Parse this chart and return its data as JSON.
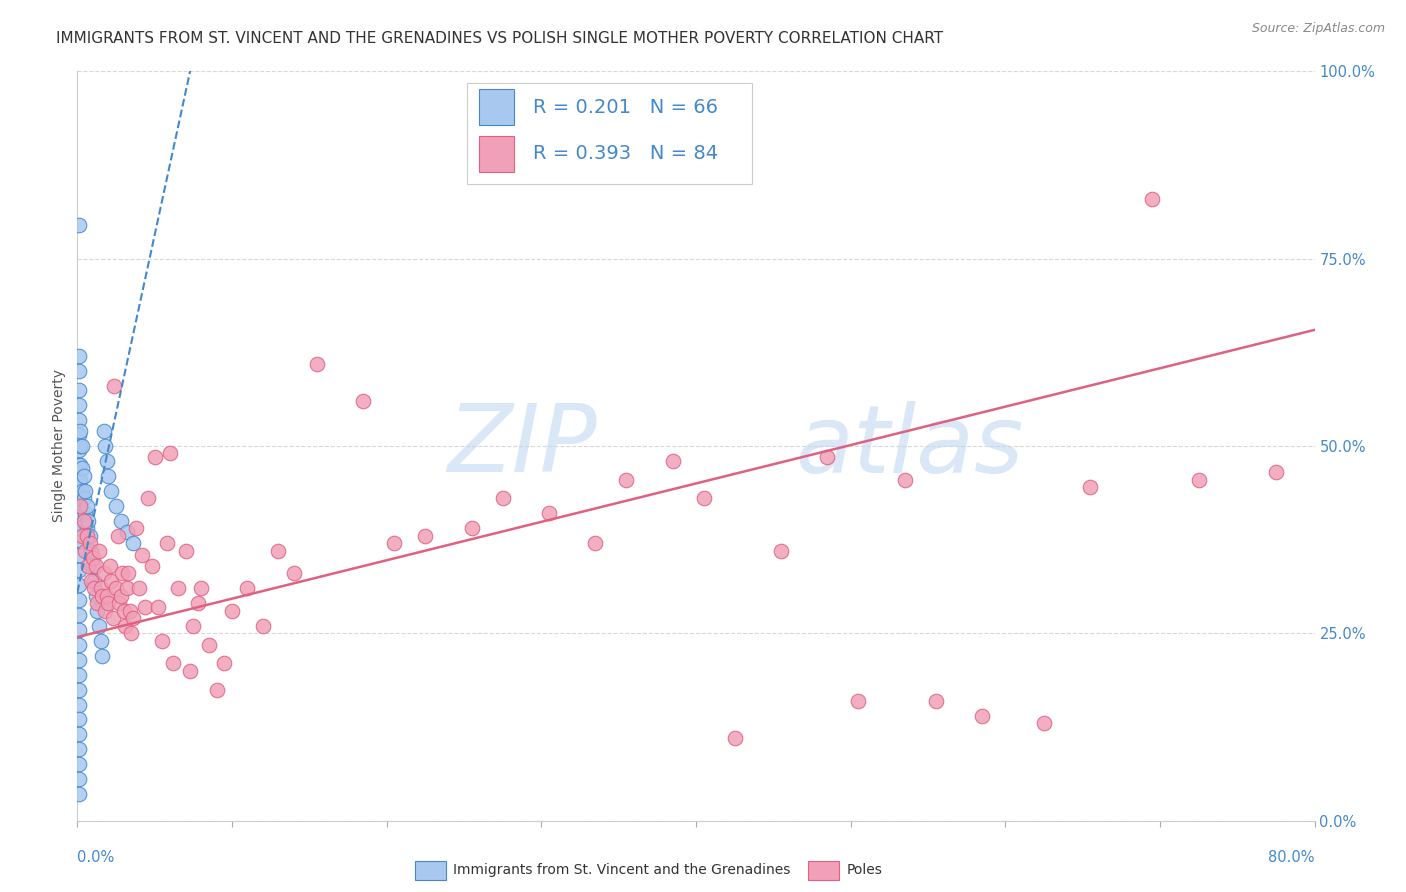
{
  "title": "IMMIGRANTS FROM ST. VINCENT AND THE GRENADINES VS POLISH SINGLE MOTHER POVERTY CORRELATION CHART",
  "source": "Source: ZipAtlas.com",
  "ylabel": "Single Mother Poverty",
  "ytick_labels": [
    "0.0%",
    "25.0%",
    "50.0%",
    "75.0%",
    "100.0%"
  ],
  "ytick_values": [
    0,
    0.25,
    0.5,
    0.75,
    1.0
  ],
  "xlim": [
    0,
    0.8
  ],
  "ylim": [
    0,
    1.0
  ],
  "legend_label1": "Immigrants from St. Vincent and the Grenadines",
  "legend_label2": "Poles",
  "r1": "0.201",
  "n1": "66",
  "r2": "0.393",
  "n2": "84",
  "color_blue": "#a8c8f0",
  "color_pink": "#f0a0b8",
  "color_blue_dark": "#4488cc",
  "color_pink_dark": "#e06080",
  "watermark_zip": "ZIP",
  "watermark_atlas": "atlas",
  "blue_dots": [
    [
      0.001,
      0.795
    ],
    [
      0.001,
      0.62
    ],
    [
      0.001,
      0.6
    ],
    [
      0.001,
      0.575
    ],
    [
      0.001,
      0.555
    ],
    [
      0.001,
      0.535
    ],
    [
      0.001,
      0.515
    ],
    [
      0.001,
      0.495
    ],
    [
      0.001,
      0.475
    ],
    [
      0.001,
      0.455
    ],
    [
      0.001,
      0.435
    ],
    [
      0.001,
      0.415
    ],
    [
      0.001,
      0.395
    ],
    [
      0.001,
      0.375
    ],
    [
      0.001,
      0.355
    ],
    [
      0.001,
      0.335
    ],
    [
      0.001,
      0.315
    ],
    [
      0.001,
      0.295
    ],
    [
      0.001,
      0.275
    ],
    [
      0.001,
      0.255
    ],
    [
      0.001,
      0.235
    ],
    [
      0.001,
      0.215
    ],
    [
      0.001,
      0.195
    ],
    [
      0.001,
      0.175
    ],
    [
      0.001,
      0.155
    ],
    [
      0.001,
      0.135
    ],
    [
      0.001,
      0.115
    ],
    [
      0.001,
      0.095
    ],
    [
      0.001,
      0.075
    ],
    [
      0.001,
      0.055
    ],
    [
      0.001,
      0.035
    ],
    [
      0.002,
      0.52
    ],
    [
      0.002,
      0.5
    ],
    [
      0.002,
      0.475
    ],
    [
      0.002,
      0.455
    ],
    [
      0.002,
      0.43
    ],
    [
      0.002,
      0.41
    ],
    [
      0.002,
      0.39
    ],
    [
      0.003,
      0.5
    ],
    [
      0.003,
      0.47
    ],
    [
      0.003,
      0.44
    ],
    [
      0.004,
      0.46
    ],
    [
      0.004,
      0.43
    ],
    [
      0.005,
      0.44
    ],
    [
      0.005,
      0.41
    ],
    [
      0.006,
      0.42
    ],
    [
      0.006,
      0.39
    ],
    [
      0.007,
      0.4
    ],
    [
      0.008,
      0.38
    ],
    [
      0.009,
      0.36
    ],
    [
      0.01,
      0.34
    ],
    [
      0.011,
      0.32
    ],
    [
      0.012,
      0.3
    ],
    [
      0.013,
      0.28
    ],
    [
      0.014,
      0.26
    ],
    [
      0.015,
      0.24
    ],
    [
      0.016,
      0.22
    ],
    [
      0.017,
      0.52
    ],
    [
      0.018,
      0.5
    ],
    [
      0.019,
      0.48
    ],
    [
      0.02,
      0.46
    ],
    [
      0.022,
      0.44
    ],
    [
      0.025,
      0.42
    ],
    [
      0.028,
      0.4
    ],
    [
      0.032,
      0.385
    ],
    [
      0.036,
      0.37
    ]
  ],
  "pink_dots": [
    [
      0.002,
      0.42
    ],
    [
      0.003,
      0.38
    ],
    [
      0.004,
      0.4
    ],
    [
      0.005,
      0.36
    ],
    [
      0.006,
      0.38
    ],
    [
      0.007,
      0.34
    ],
    [
      0.008,
      0.37
    ],
    [
      0.009,
      0.32
    ],
    [
      0.01,
      0.35
    ],
    [
      0.011,
      0.31
    ],
    [
      0.012,
      0.34
    ],
    [
      0.013,
      0.29
    ],
    [
      0.014,
      0.36
    ],
    [
      0.015,
      0.31
    ],
    [
      0.016,
      0.3
    ],
    [
      0.017,
      0.33
    ],
    [
      0.018,
      0.28
    ],
    [
      0.019,
      0.3
    ],
    [
      0.02,
      0.29
    ],
    [
      0.021,
      0.34
    ],
    [
      0.022,
      0.32
    ],
    [
      0.023,
      0.27
    ],
    [
      0.024,
      0.58
    ],
    [
      0.025,
      0.31
    ],
    [
      0.026,
      0.38
    ],
    [
      0.027,
      0.29
    ],
    [
      0.028,
      0.3
    ],
    [
      0.029,
      0.33
    ],
    [
      0.03,
      0.28
    ],
    [
      0.031,
      0.26
    ],
    [
      0.032,
      0.31
    ],
    [
      0.033,
      0.33
    ],
    [
      0.034,
      0.28
    ],
    [
      0.035,
      0.25
    ],
    [
      0.036,
      0.27
    ],
    [
      0.038,
      0.39
    ],
    [
      0.04,
      0.31
    ],
    [
      0.042,
      0.355
    ],
    [
      0.044,
      0.285
    ],
    [
      0.046,
      0.43
    ],
    [
      0.048,
      0.34
    ],
    [
      0.05,
      0.485
    ],
    [
      0.052,
      0.285
    ],
    [
      0.055,
      0.24
    ],
    [
      0.058,
      0.37
    ],
    [
      0.06,
      0.49
    ],
    [
      0.062,
      0.21
    ],
    [
      0.065,
      0.31
    ],
    [
      0.07,
      0.36
    ],
    [
      0.073,
      0.2
    ],
    [
      0.075,
      0.26
    ],
    [
      0.078,
      0.29
    ],
    [
      0.08,
      0.31
    ],
    [
      0.085,
      0.235
    ],
    [
      0.09,
      0.175
    ],
    [
      0.095,
      0.21
    ],
    [
      0.1,
      0.28
    ],
    [
      0.11,
      0.31
    ],
    [
      0.12,
      0.26
    ],
    [
      0.13,
      0.36
    ],
    [
      0.14,
      0.33
    ],
    [
      0.155,
      0.61
    ],
    [
      0.185,
      0.56
    ],
    [
      0.205,
      0.37
    ],
    [
      0.225,
      0.38
    ],
    [
      0.255,
      0.39
    ],
    [
      0.275,
      0.43
    ],
    [
      0.305,
      0.41
    ],
    [
      0.335,
      0.37
    ],
    [
      0.355,
      0.455
    ],
    [
      0.385,
      0.48
    ],
    [
      0.405,
      0.43
    ],
    [
      0.425,
      0.11
    ],
    [
      0.455,
      0.36
    ],
    [
      0.485,
      0.485
    ],
    [
      0.505,
      0.16
    ],
    [
      0.535,
      0.455
    ],
    [
      0.555,
      0.16
    ],
    [
      0.585,
      0.14
    ],
    [
      0.625,
      0.13
    ],
    [
      0.655,
      0.445
    ],
    [
      0.695,
      0.83
    ],
    [
      0.725,
      0.455
    ],
    [
      0.775,
      0.465
    ]
  ],
  "blue_line": [
    [
      0.0,
      0.305
    ],
    [
      0.075,
      1.02
    ]
  ],
  "pink_line": [
    [
      0.0,
      0.245
    ],
    [
      0.8,
      0.655
    ]
  ],
  "xtick_positions": [
    0.0,
    0.1,
    0.2,
    0.3,
    0.4,
    0.5,
    0.6,
    0.7,
    0.8
  ],
  "grid_color": "#d8d8d8",
  "background_color": "#ffffff",
  "title_fontsize": 11,
  "axis_label_fontsize": 10,
  "tick_fontsize": 10.5,
  "legend_fontsize": 14
}
